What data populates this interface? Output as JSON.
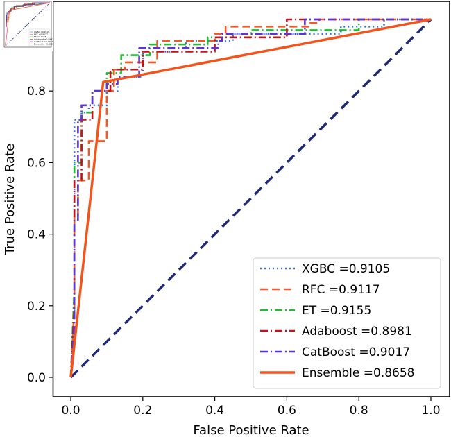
{
  "chart_data": {
    "type": "line",
    "title": "",
    "xlabel": "False Positive Rate",
    "ylabel": "True Positive Rate",
    "xlim": [
      0.0,
      1.0
    ],
    "ylim": [
      0.0,
      1.0
    ],
    "xticks": [
      "0.0",
      "0.2",
      "0.4",
      "0.6",
      "0.8",
      "1.0"
    ],
    "yticks": [
      "0.0",
      "0.2",
      "0.4",
      "0.6",
      "0.8"
    ],
    "legend_position": "lower-right",
    "grid": false,
    "chance_line": {
      "x": [
        0,
        1
      ],
      "y": [
        0,
        1
      ],
      "color": "#1f2a77",
      "style": "dashed"
    },
    "series": [
      {
        "name": "XGBC",
        "label": "XGBC =0.9105",
        "color": "#3a6fd8",
        "style": "dotted",
        "x": [
          0,
          0.01,
          0.01,
          0.03,
          0.03,
          0.05,
          0.05,
          0.1,
          0.1,
          0.13,
          0.13,
          0.2,
          0.2,
          0.32,
          0.32,
          0.45,
          0.45,
          0.75,
          0.75,
          0.87,
          0.87,
          1.0
        ],
        "y": [
          0,
          0.1,
          0.72,
          0.72,
          0.74,
          0.74,
          0.76,
          0.76,
          0.8,
          0.8,
          0.84,
          0.84,
          0.91,
          0.91,
          0.94,
          0.94,
          0.96,
          0.96,
          0.98,
          0.98,
          1.0,
          1.0
        ]
      },
      {
        "name": "RFC",
        "label": "RFC =0.9117",
        "color": "#ef5a28",
        "style": "dashed",
        "x": [
          0,
          0.01,
          0.01,
          0.02,
          0.02,
          0.05,
          0.05,
          0.07,
          0.07,
          0.1,
          0.1,
          0.12,
          0.12,
          0.15,
          0.15,
          0.24,
          0.24,
          0.4,
          0.4,
          0.43,
          0.43,
          0.66,
          0.66,
          0.69,
          0.69,
          1.0
        ],
        "y": [
          0,
          0.2,
          0.45,
          0.45,
          0.55,
          0.55,
          0.66,
          0.66,
          0.66,
          0.66,
          0.8,
          0.8,
          0.86,
          0.86,
          0.88,
          0.88,
          0.94,
          0.94,
          0.96,
          0.96,
          0.98,
          0.98,
          0.99,
          0.99,
          1.0,
          1.0
        ]
      },
      {
        "name": "ET",
        "label": "ET =0.9155",
        "color": "#22bb33",
        "style": "dashdot",
        "x": [
          0,
          0.01,
          0.01,
          0.03,
          0.03,
          0.06,
          0.06,
          0.1,
          0.1,
          0.14,
          0.14,
          0.22,
          0.22,
          0.38,
          0.38,
          0.5,
          0.5,
          0.8,
          0.8,
          1.0
        ],
        "y": [
          0,
          0.25,
          0.6,
          0.6,
          0.74,
          0.74,
          0.8,
          0.8,
          0.85,
          0.85,
          0.9,
          0.9,
          0.93,
          0.93,
          0.95,
          0.95,
          0.97,
          0.97,
          1.0,
          1.0
        ]
      },
      {
        "name": "Adaboost",
        "label": "Adaboost =0.8981",
        "color": "#c0151b",
        "style": "dashdot",
        "x": [
          0,
          0.01,
          0.01,
          0.03,
          0.03,
          0.06,
          0.06,
          0.11,
          0.11,
          0.2,
          0.2,
          0.4,
          0.4,
          0.6,
          0.6,
          1.0
        ],
        "y": [
          0,
          0.2,
          0.55,
          0.55,
          0.72,
          0.72,
          0.8,
          0.8,
          0.86,
          0.86,
          0.91,
          0.91,
          0.95,
          0.95,
          1.0,
          1.0
        ]
      },
      {
        "name": "CatBoost",
        "label": "CatBoost =0.9017",
        "color": "#5b35d5",
        "style": "dashdot",
        "x": [
          0,
          0.01,
          0.01,
          0.02,
          0.02,
          0.03,
          0.03,
          0.06,
          0.06,
          0.1,
          0.1,
          0.13,
          0.13,
          0.19,
          0.19,
          0.41,
          0.41,
          0.42,
          0.42,
          0.65,
          0.65,
          1.0
        ],
        "y": [
          0,
          0.15,
          0.44,
          0.44,
          0.72,
          0.72,
          0.76,
          0.76,
          0.8,
          0.8,
          0.82,
          0.82,
          0.84,
          0.84,
          0.92,
          0.92,
          0.94,
          0.94,
          0.96,
          0.96,
          1.0,
          1.0
        ]
      },
      {
        "name": "Ensemble",
        "label": "Ensemble =0.8658",
        "color": "#f2541b",
        "style": "solid",
        "x": [
          0,
          0.09,
          1.0
        ],
        "y": [
          0,
          0.825,
          1.0
        ]
      }
    ]
  }
}
